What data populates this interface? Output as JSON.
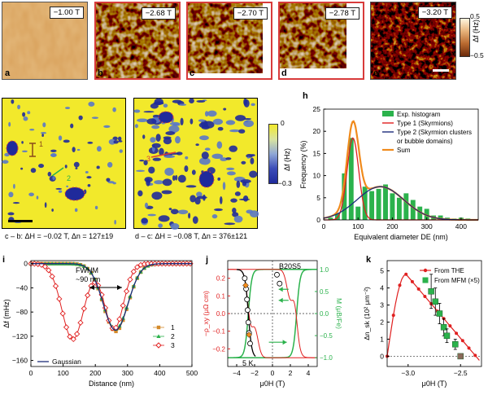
{
  "panels": {
    "a": {
      "letter": "a",
      "field": "−1.00 T"
    },
    "b": {
      "letter": "b",
      "field": "−2.68 T"
    },
    "c": {
      "letter": "c",
      "field": "−2.70 T"
    },
    "d": {
      "letter": "d",
      "field": "−2.78 T"
    },
    "e": {
      "letter": "e",
      "field": "−3.20 T"
    },
    "f": {
      "letter": "f",
      "caption": "c – b: ΔH = −0.02 T, Δn = 127±19",
      "line1": "1",
      "line2": "2"
    },
    "g": {
      "letter": "g",
      "caption": "d – c: ΔH = −0.08 T, Δn = 376±121",
      "line3": "3"
    },
    "h": {
      "letter": "h"
    },
    "i": {
      "letter": "i",
      "fwhm1": "FWHM",
      "fwhm2": "~90 nm"
    },
    "j": {
      "letter": "j",
      "sample": "B20S5",
      "temp": "5 K"
    },
    "k": {
      "letter": "k"
    }
  },
  "colorbar_top": {
    "max": "0.5",
    "min": "−0.5",
    "label": "Δf (Hz)"
  },
  "colorbar_mid": {
    "max": "0",
    "min": "−0.3",
    "label": "Δf (Hz)"
  },
  "colors": {
    "red_frame": "#d83b3b",
    "orange_tile": "#d99a4c",
    "brown": "#6b2a0a",
    "yellow": "#f2e92b",
    "blue": "#1f2a9b",
    "green": "#2bb24c",
    "orange_sum": "#f08a1c",
    "red": "#e02020",
    "navy": "#1d2c7a"
  },
  "chart_data": [
    {
      "id": "h",
      "type": "bar",
      "xlabel": "Equivalent diameter D_E (nm)",
      "ylabel": "Frequency (%)",
      "xlim": [
        0,
        450
      ],
      "ylim": [
        0,
        25
      ],
      "xticks": [
        "0",
        "100",
        "200",
        "300",
        "400"
      ],
      "yticks": [
        "0",
        "5",
        "10",
        "15",
        "20",
        "25"
      ],
      "histogram": {
        "bin_centers": [
          20,
          40,
          60,
          80,
          100,
          120,
          140,
          160,
          180,
          200,
          220,
          240,
          260,
          280,
          300,
          320,
          340,
          360,
          380,
          400,
          420
        ],
        "values": [
          0.5,
          1.5,
          10.5,
          18.5,
          3.0,
          7.5,
          6.5,
          7.0,
          8.0,
          6.0,
          5.0,
          6.0,
          4.5,
          3.0,
          2.5,
          1.0,
          1.0,
          0.5,
          0.3,
          0.5,
          0.3
        ]
      },
      "series": [
        {
          "name": "Exp. histogram",
          "color": "#2bb24c"
        },
        {
          "name": "Type 1 (Skyrmions)",
          "color": "#e02020",
          "gauss": {
            "mu": 85,
            "sigma": 17,
            "amp": 18.5
          }
        },
        {
          "name": "Type 2 (Skyrmion clusters",
          "name2": "or bubble domains)",
          "color": "#1d2c7a",
          "gauss": {
            "mu": 165,
            "sigma": 68,
            "amp": 7.5
          }
        },
        {
          "name": "Sum",
          "color": "#f08a1c"
        }
      ]
    },
    {
      "id": "i",
      "type": "line",
      "xlabel": "Distance (nm)",
      "ylabel": "Δf (mHz)",
      "xlim": [
        0,
        500
      ],
      "ylim": [
        -170,
        5
      ],
      "xticks": [
        "0",
        "100",
        "200",
        "300",
        "400",
        "500"
      ],
      "yticks": [
        "0",
        "−40",
        "−80",
        "−120",
        "−160"
      ],
      "series": [
        {
          "name": "1",
          "color": "#d48a2a",
          "marker": "square",
          "dips": [
            {
              "center": 263,
              "fwhm": 90,
              "depth": -112
            }
          ]
        },
        {
          "name": "2",
          "color": "#2bb24c",
          "marker": "triangle",
          "dips": [
            {
              "center": 263,
              "fwhm": 90,
              "depth": -108
            }
          ]
        },
        {
          "name": "3",
          "color": "#e02020",
          "marker": "diamond",
          "dips": [
            {
              "center": 130,
              "fwhm": 80,
              "depth": -125
            },
            {
              "center": 258,
              "fwhm": 70,
              "depth": -108
            }
          ]
        },
        {
          "name": "Gaussian",
          "color": "#1d2c7a",
          "marker": "none"
        }
      ]
    },
    {
      "id": "j",
      "type": "line",
      "xlabel": "μ0H (T)",
      "ylabel_left": "−ρ_xy (μΩ cm)",
      "ylabel_right": "M (μB/Fe)",
      "xlim": [
        -5,
        5
      ],
      "ylim_left": [
        -0.3,
        0.3
      ],
      "ylim_right": [
        -1.2,
        1.2
      ],
      "xticks": [
        "−4",
        "−2",
        "0",
        "2",
        "4"
      ],
      "yticks_left": [
        "−0.2",
        "−0.1",
        "0.0",
        "0.1",
        "0.2"
      ],
      "yticks_right": [
        "−1.0",
        "−0.5",
        "0.0",
        "0.5",
        "1.0"
      ]
    },
    {
      "id": "k",
      "type": "scatter",
      "xlabel": "μ0H (T)",
      "ylabel": "Δn_sk (10² μm⁻²)",
      "xlim": [
        -3.2,
        -2.3
      ],
      "ylim": [
        -0.6,
        5.6
      ],
      "xticks": [
        "−3.0",
        "−2.5"
      ],
      "yticks": [
        "0",
        "1",
        "2",
        "3",
        "4",
        "5"
      ],
      "series": [
        {
          "name": "From THE",
          "color": "#e02020"
        },
        {
          "name": "From MFM (×5)",
          "color": "#2bb24c",
          "x": [
            -2.78,
            -2.74,
            -2.7,
            -2.66,
            -2.63,
            -2.55,
            -2.5
          ],
          "y": [
            3.8,
            3.2,
            2.5,
            1.7,
            1.2,
            0.7,
            0.0
          ],
          "err": [
            1.0,
            0.8,
            0.6,
            0.5,
            0.4,
            0.3,
            0.0
          ]
        }
      ]
    }
  ]
}
